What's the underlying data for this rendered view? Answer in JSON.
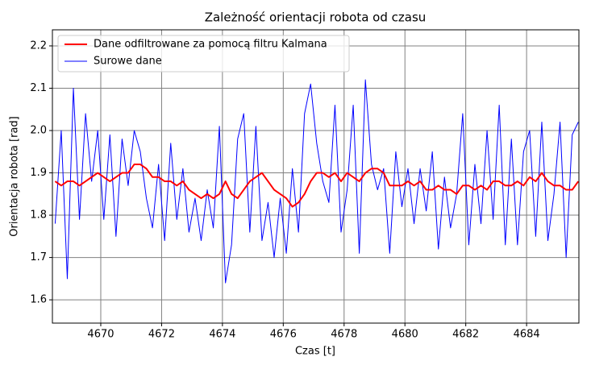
{
  "chart_data": {
    "type": "line",
    "title": "Zależność orientacji robota od czasu",
    "x_label": "Czas [t]",
    "y_label": "Orientacja robota [rad]",
    "x": [
      4668.5,
      4668.7,
      4668.9,
      4669.1,
      4669.3,
      4669.5,
      4669.7,
      4669.9,
      4670.1,
      4670.3,
      4670.5,
      4670.7,
      4670.9,
      4671.1,
      4671.3,
      4671.5,
      4671.7,
      4671.9,
      4672.1,
      4672.3,
      4672.5,
      4672.7,
      4672.9,
      4673.1,
      4673.3,
      4673.5,
      4673.7,
      4673.9,
      4674.1,
      4674.3,
      4674.5,
      4674.7,
      4674.9,
      4675.1,
      4675.3,
      4675.5,
      4675.7,
      4675.9,
      4676.1,
      4676.3,
      4676.5,
      4676.7,
      4676.9,
      4677.1,
      4677.3,
      4677.5,
      4677.7,
      4677.9,
      4678.1,
      4678.3,
      4678.5,
      4678.7,
      4678.9,
      4679.1,
      4679.3,
      4679.5,
      4679.7,
      4679.9,
      4680.1,
      4680.3,
      4680.5,
      4680.7,
      4680.9,
      4681.1,
      4681.3,
      4681.5,
      4681.7,
      4681.9,
      4682.1,
      4682.3,
      4682.5,
      4682.7,
      4682.9,
      4683.1,
      4683.3,
      4683.5,
      4683.7,
      4683.9,
      4684.1,
      4684.3,
      4684.5,
      4684.7,
      4684.9,
      4685.1,
      4685.3,
      4685.5,
      4685.7
    ],
    "series": [
      {
        "name": "Dane odfiltrowane za pomocą filtru Kalmana",
        "color": "#ff0000",
        "width": 2,
        "values": [
          1.88,
          1.87,
          1.88,
          1.88,
          1.87,
          1.88,
          1.89,
          1.9,
          1.89,
          1.88,
          1.89,
          1.9,
          1.9,
          1.92,
          1.92,
          1.91,
          1.89,
          1.89,
          1.88,
          1.88,
          1.87,
          1.88,
          1.86,
          1.85,
          1.84,
          1.85,
          1.84,
          1.85,
          1.88,
          1.85,
          1.84,
          1.86,
          1.88,
          1.89,
          1.9,
          1.88,
          1.86,
          1.85,
          1.84,
          1.82,
          1.83,
          1.85,
          1.88,
          1.9,
          1.9,
          1.89,
          1.9,
          1.88,
          1.9,
          1.89,
          1.88,
          1.9,
          1.91,
          1.91,
          1.9,
          1.87,
          1.87,
          1.87,
          1.88,
          1.87,
          1.88,
          1.86,
          1.86,
          1.87,
          1.86,
          1.86,
          1.85,
          1.87,
          1.87,
          1.86,
          1.87,
          1.86,
          1.88,
          1.88,
          1.87,
          1.87,
          1.88,
          1.87,
          1.89,
          1.88,
          1.9,
          1.88,
          1.87,
          1.87,
          1.86,
          1.86,
          1.88
        ]
      },
      {
        "name": "Surowe dane",
        "color": "#0000ff",
        "width": 1,
        "values": [
          1.78,
          2.0,
          1.65,
          2.1,
          1.79,
          2.04,
          1.88,
          2.0,
          1.79,
          1.99,
          1.75,
          1.98,
          1.87,
          2.0,
          1.95,
          1.84,
          1.77,
          1.92,
          1.74,
          1.97,
          1.79,
          1.91,
          1.76,
          1.84,
          1.74,
          1.86,
          1.77,
          2.01,
          1.64,
          1.73,
          1.98,
          2.04,
          1.76,
          2.01,
          1.74,
          1.83,
          1.7,
          1.84,
          1.71,
          1.91,
          1.76,
          2.04,
          2.11,
          1.97,
          1.88,
          1.83,
          2.06,
          1.76,
          1.86,
          2.06,
          1.71,
          2.12,
          1.92,
          1.86,
          1.91,
          1.71,
          1.95,
          1.82,
          1.91,
          1.78,
          1.91,
          1.81,
          1.95,
          1.72,
          1.89,
          1.77,
          1.85,
          2.04,
          1.73,
          1.92,
          1.78,
          2.0,
          1.79,
          2.06,
          1.73,
          1.98,
          1.73,
          1.95,
          2.0,
          1.75,
          2.02,
          1.74,
          1.85,
          2.02,
          1.7,
          1.99,
          2.02
        ]
      }
    ],
    "xlim": [
      4668.41,
      4685.72
    ],
    "ylim": [
      1.545,
      2.238
    ],
    "xticks": [
      4670,
      4672,
      4674,
      4676,
      4678,
      4680,
      4682,
      4684
    ],
    "yticks": [
      1.6,
      1.7,
      1.8,
      1.9,
      {
        "value": 2,
        "label": "2.0"
      },
      2.1,
      2.2
    ],
    "grid": true,
    "legend": "upper left"
  }
}
